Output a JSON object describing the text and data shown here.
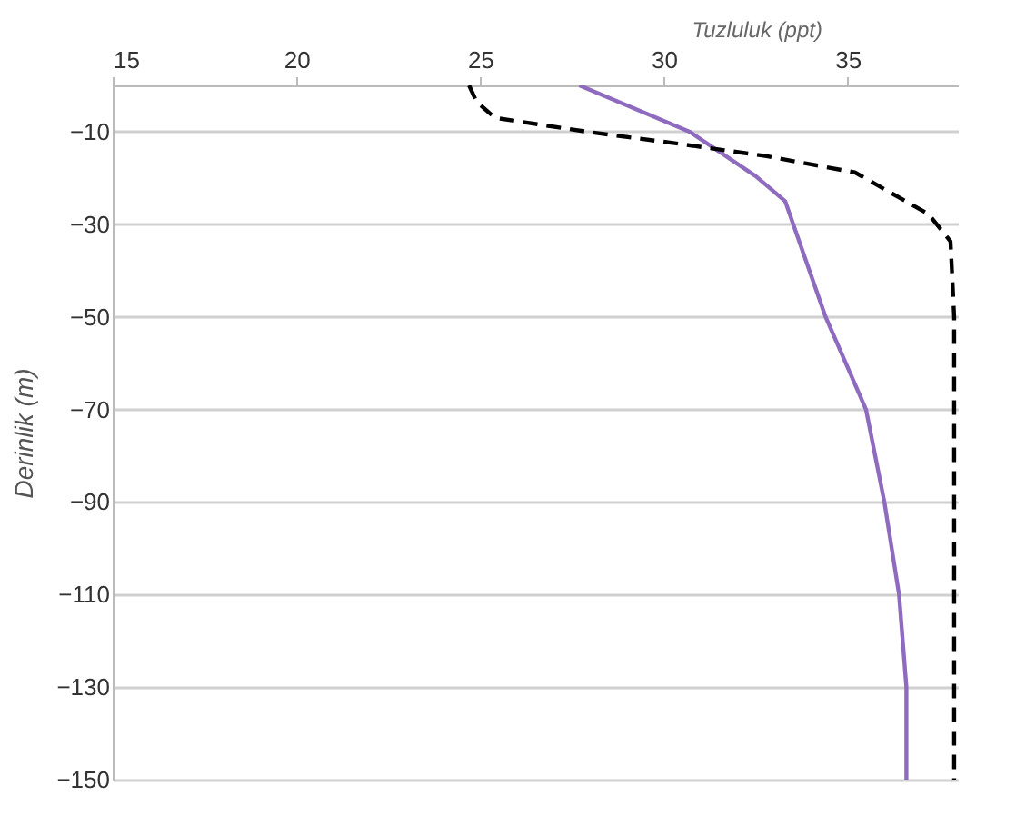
{
  "chart_data": {
    "type": "line",
    "xlabel": "Tuzluluk (ppt)",
    "ylabel": "Derinlik (m)",
    "xlim": [
      15,
      38
    ],
    "xticks": [
      15,
      20,
      25,
      30,
      35
    ],
    "ylim": [
      -150,
      0
    ],
    "yticks": [
      -10,
      -30,
      -50,
      -70,
      -90,
      -110,
      -130,
      -150
    ],
    "grid": "y",
    "legend": false,
    "series": [
      {
        "color": "#8e6bbf",
        "line_style": "solid",
        "x": [
          27.7,
          30.7,
          32.5,
          33.3,
          34.4,
          35.5,
          36.0,
          36.4,
          36.6,
          36.6
        ],
        "values": [
          0,
          -10,
          -19.6,
          -25,
          -50,
          -70,
          -90,
          -110,
          -130,
          -150
        ]
      },
      {
        "color": "#000000",
        "line_style": "dashed",
        "x": [
          24.7,
          24.9,
          25.4,
          27.9,
          30.3,
          32.8,
          35.2,
          37.2,
          37.8,
          37.9,
          37.9
        ],
        "values": [
          0,
          -3.5,
          -7,
          -10,
          -12.5,
          -15.3,
          -18.8,
          -27.8,
          -33.7,
          -50,
          -150
        ]
      }
    ]
  }
}
